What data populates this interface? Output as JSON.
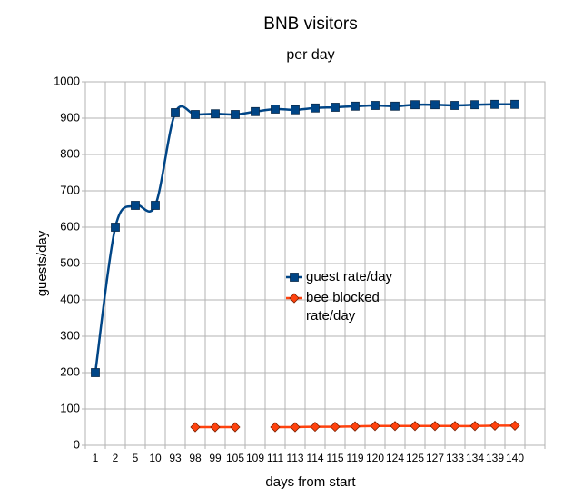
{
  "chart_data": {
    "type": "line",
    "title": "BNB visitors",
    "subtitle": "per day",
    "x_label": "days from start",
    "y_label": "guests/day",
    "categories": [
      "1",
      "2",
      "5",
      "10",
      "93",
      "98",
      "99",
      "105",
      "109",
      "111",
      "113",
      "114",
      "115",
      "119",
      "120",
      "124",
      "125",
      "127",
      "133",
      "134",
      "139",
      "140",
      null
    ],
    "series": [
      {
        "name": "guest rate/day",
        "color": "#004586",
        "marker": "square",
        "values": [
          200,
          600,
          660,
          660,
          915,
          910,
          912,
          910,
          918,
          925,
          923,
          928,
          930,
          933,
          935,
          933,
          937,
          937,
          935,
          937,
          938,
          938,
          null
        ]
      },
      {
        "name": "bee blocked rate/day",
        "color": "#ff420e",
        "marker": "diamond",
        "values": [
          null,
          null,
          null,
          null,
          null,
          50,
          50,
          50,
          null,
          50,
          50,
          51,
          51,
          52,
          53,
          53,
          53,
          53,
          53,
          53,
          54,
          54,
          null
        ]
      }
    ],
    "ylim": [
      0,
      1000
    ],
    "yticks": [
      0,
      100,
      200,
      300,
      400,
      500,
      600,
      700,
      800,
      900,
      1000
    ],
    "grid": true,
    "smooth": true
  }
}
